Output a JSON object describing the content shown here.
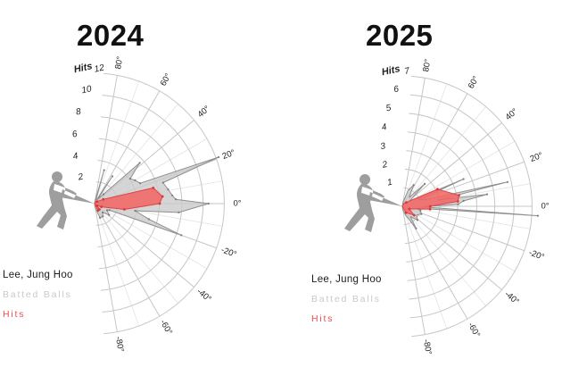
{
  "page": {
    "background": "#ffffff"
  },
  "colors": {
    "grid_major": "#c6c6c6",
    "grid_minor": "#e3e3e3",
    "batted_fill": "rgba(201,201,201,0.78)",
    "batted_stroke": "#8f8f8f",
    "hits_fill": "rgba(242,104,104,0.88)",
    "hits_stroke": "#d84545",
    "marker_red": "#e03535",
    "marker_gray": "#7d7d7d",
    "text": "#1f1f1f",
    "silhouette": "#9e9e9e"
  },
  "charts": [
    {
      "title": "2024",
      "axis_title": "Hits",
      "ring_values": [
        2,
        4,
        6,
        8,
        10,
        12
      ],
      "max_value": 12,
      "angle_ticks": [
        {
          "value": 80,
          "label": "80°"
        },
        {
          "value": 60,
          "label": "60°"
        },
        {
          "value": 40,
          "label": "40°"
        },
        {
          "value": 20,
          "label": "20°"
        },
        {
          "value": 0,
          "label": "0°"
        },
        {
          "value": -20,
          "label": "-20°"
        },
        {
          "value": -40,
          "label": "-40°"
        },
        {
          "value": -60,
          "label": "-60°"
        },
        {
          "value": -80,
          "label": "-80°"
        }
      ],
      "legend": [
        {
          "label": "Lee, Jung Hoo",
          "color": "#1c1c1c",
          "letter_spacing": 0.3
        },
        {
          "label": "Batted Balls",
          "color": "#c9c9c9",
          "letter_spacing": 1.8
        },
        {
          "label": "Hits",
          "color": "#ee4f4f",
          "letter_spacing": 1.8
        }
      ]
    },
    {
      "title": "2025",
      "axis_title": "Hits",
      "ring_values": [
        1,
        2,
        3,
        4,
        5,
        6,
        7
      ],
      "max_value": 7,
      "angle_ticks": [
        {
          "value": 80,
          "label": "80°"
        },
        {
          "value": 60,
          "label": "60°"
        },
        {
          "value": 40,
          "label": "40°"
        },
        {
          "value": 20,
          "label": "20°"
        },
        {
          "value": 0,
          "label": "0°"
        },
        {
          "value": -20,
          "label": "-20°"
        },
        {
          "value": -40,
          "label": "-40°"
        },
        {
          "value": -60,
          "label": "-60°"
        },
        {
          "value": -80,
          "label": "-80°"
        }
      ],
      "legend": [
        {
          "label": "Lee, Jung Hoo",
          "color": "#1c1c1c",
          "letter_spacing": 0.3
        },
        {
          "label": "Batted Balls",
          "color": "#c9c9c9",
          "letter_spacing": 1.8
        },
        {
          "label": "Hits",
          "color": "#ee4f4f",
          "letter_spacing": 1.8
        }
      ]
    }
  ],
  "chart_data": [
    {
      "type": "radar",
      "title": "2024",
      "angular_unit": "degrees (spray / launch direction)",
      "angular_range": [
        -80,
        80
      ],
      "radial_label": "Hits",
      "radial_range": [
        0,
        12
      ],
      "radial_ticks": [
        2,
        4,
        6,
        8,
        10,
        12
      ],
      "legend_position": "bottom-left",
      "series": [
        {
          "name": "Batted Balls",
          "color": "#c9c9c9",
          "points": [
            [
              80,
              0.3
            ],
            [
              74,
              3.2
            ],
            [
              71,
              0.4
            ],
            [
              60,
              0.4
            ],
            [
              57,
              3.0
            ],
            [
              53,
              0.5
            ],
            [
              46,
              1.2
            ],
            [
              42,
              5.6
            ],
            [
              35,
              4.0
            ],
            [
              30,
              4.3
            ],
            [
              24,
              4.6
            ],
            [
              20.5,
              12.2
            ],
            [
              17,
              6.6
            ],
            [
              11,
              6.9
            ],
            [
              6,
              7.2
            ],
            [
              3,
              7.5
            ],
            [
              0,
              10.5
            ],
            [
              -6,
              7.8
            ],
            [
              -10,
              3.8
            ],
            [
              -16,
              5.2
            ],
            [
              -20,
              8.5
            ],
            [
              -24,
              1.5
            ],
            [
              -28,
              1.3
            ],
            [
              -38,
              1.7
            ],
            [
              -48,
              1.1
            ],
            [
              -57,
              1.4
            ],
            [
              -69,
              1.4
            ],
            [
              -80,
              0.4
            ]
          ]
        },
        {
          "name": "Hits",
          "color": "#f26868",
          "points": [
            [
              80,
              0
            ],
            [
              60,
              0.2
            ],
            [
              40,
              0.3
            ],
            [
              26,
              0.9
            ],
            [
              15,
              5.6
            ],
            [
              6,
              6.3
            ],
            [
              0,
              6.0
            ],
            [
              -11,
              2.8
            ],
            [
              -25,
              0.7
            ],
            [
              -40,
              0.3
            ],
            [
              -50,
              0.7
            ],
            [
              -63,
              0.7
            ],
            [
              -80,
              0
            ]
          ]
        }
      ]
    },
    {
      "type": "radar",
      "title": "2025",
      "angular_unit": "degrees (spray / launch direction)",
      "angular_range": [
        -80,
        80
      ],
      "radial_label": "Hits",
      "radial_range": [
        0,
        7
      ],
      "radial_ticks": [
        1,
        2,
        3,
        4,
        5,
        6,
        7
      ],
      "legend_position": "bottom-left",
      "series": [
        {
          "name": "Batted Balls",
          "color": "#c9c9c9",
          "points": [
            [
              80,
              0.2
            ],
            [
              70,
              0.9
            ],
            [
              62,
              1.3
            ],
            [
              52,
              0.6
            ],
            [
              45,
              1.7
            ],
            [
              36,
              0.5
            ],
            [
              27,
              1.0
            ],
            [
              24,
              3.6
            ],
            [
              21,
              1.0
            ],
            [
              16,
              1.3
            ],
            [
              13,
              5.8
            ],
            [
              10,
              2.0
            ],
            [
              8,
              4.6
            ],
            [
              5,
              3.3
            ],
            [
              2,
              3.0
            ],
            [
              0,
              1.4
            ],
            [
              -1.5,
              1.2
            ],
            [
              -4,
              7.3
            ],
            [
              -8,
              0.7
            ],
            [
              -13,
              1.0
            ],
            [
              -22,
              1.1
            ],
            [
              -32,
              0.9
            ],
            [
              -42,
              1.1
            ],
            [
              -52,
              0.7
            ],
            [
              -58,
              1.4
            ],
            [
              -70,
              0.5
            ],
            [
              -80,
              0.2
            ]
          ]
        },
        {
          "name": "Hits",
          "color": "#f26868",
          "points": [
            [
              80,
              0
            ],
            [
              60,
              0.2
            ],
            [
              45,
              0.3
            ],
            [
              26,
              2.1
            ],
            [
              11,
              3.1
            ],
            [
              5,
              3.0
            ],
            [
              0,
              1.5
            ],
            [
              -6,
              1.5
            ],
            [
              -20,
              0.4
            ],
            [
              -37,
              0.8
            ],
            [
              -60,
              0.4
            ],
            [
              -80,
              0
            ]
          ]
        }
      ]
    }
  ]
}
